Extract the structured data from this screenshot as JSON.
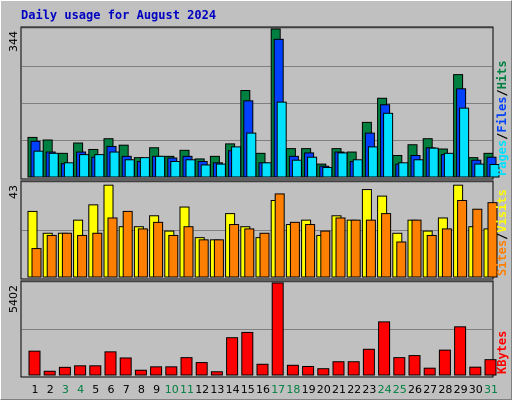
{
  "title": "Daily usage for August 2024",
  "colors": {
    "hits": "#008040",
    "files": "#0040ff",
    "pages": "#00e0ff",
    "visits": "#ffff00",
    "sites": "#ff8000",
    "kbytes": "#ff0000",
    "weekend": "#008040",
    "weekday": "#000000"
  },
  "side_labels": {
    "top": [
      "Pages",
      "Files",
      "Hits"
    ],
    "mid": [
      "Sites",
      "Visits"
    ],
    "bottom": [
      "KBytes"
    ]
  },
  "chart_data": [
    {
      "type": "bar",
      "panel": "hits-files-pages",
      "ytick_label": "344",
      "ylim": [
        0,
        344
      ],
      "categories": [
        "1",
        "2",
        "3",
        "4",
        "5",
        "6",
        "7",
        "8",
        "9",
        "10",
        "11",
        "12",
        "13",
        "14",
        "15",
        "16",
        "17",
        "18",
        "19",
        "20",
        "21",
        "22",
        "23",
        "24",
        "25",
        "26",
        "27",
        "28",
        "29",
        "30",
        "31"
      ],
      "weekend_days": [
        "3",
        "4",
        "10",
        "11",
        "17",
        "18",
        "24",
        "25",
        "31"
      ],
      "series": [
        {
          "name": "Hits",
          "values": [
            92,
            86,
            55,
            79,
            64,
            89,
            74,
            45,
            68,
            48,
            62,
            42,
            48,
            77,
            201,
            55,
            344,
            66,
            66,
            30,
            66,
            58,
            127,
            183,
            50,
            75,
            89,
            65,
            238,
            45,
            55
          ]
        },
        {
          "name": "Files",
          "values": [
            83,
            58,
            31,
            58,
            46,
            71,
            48,
            36,
            48,
            44,
            48,
            36,
            33,
            61,
            177,
            33,
            320,
            48,
            56,
            25,
            58,
            36,
            102,
            168,
            30,
            50,
            68,
            52,
            205,
            39,
            46
          ]
        },
        {
          "name": "Pages",
          "values": [
            60,
            55,
            33,
            52,
            52,
            58,
            40,
            45,
            48,
            36,
            40,
            28,
            30,
            70,
            102,
            33,
            174,
            39,
            46,
            22,
            56,
            40,
            70,
            148,
            33,
            40,
            67,
            55,
            160,
            30,
            29
          ]
        }
      ]
    },
    {
      "type": "bar",
      "panel": "visits-sites",
      "ytick_label": "43",
      "ylim": [
        0,
        43
      ],
      "categories": [
        "1",
        "2",
        "3",
        "4",
        "5",
        "6",
        "7",
        "8",
        "9",
        "10",
        "11",
        "12",
        "13",
        "14",
        "15",
        "16",
        "17",
        "18",
        "19",
        "20",
        "21",
        "22",
        "23",
        "24",
        "25",
        "26",
        "27",
        "28",
        "29",
        "30",
        "31"
      ],
      "series": [
        {
          "name": "Visits",
          "values": [
            30,
            20,
            20,
            26,
            33,
            42,
            23,
            23,
            28,
            21,
            32,
            18,
            17,
            29,
            23,
            18,
            35,
            24,
            26,
            19,
            28,
            26,
            40,
            37,
            20,
            26,
            21,
            27,
            42,
            23,
            22
          ]
        },
        {
          "name": "Sites",
          "values": [
            13,
            19,
            20,
            19,
            20,
            27,
            30,
            22,
            25,
            19,
            23,
            17,
            17,
            24,
            22,
            20,
            38,
            25,
            24,
            21,
            27,
            26,
            26,
            29,
            16,
            26,
            19,
            22,
            35,
            31,
            34
          ]
        }
      ]
    },
    {
      "type": "bar",
      "panel": "kbytes",
      "ytick_label": "5402",
      "ylim": [
        0,
        5402
      ],
      "categories": [
        "1",
        "2",
        "3",
        "4",
        "5",
        "6",
        "7",
        "8",
        "9",
        "10",
        "11",
        "12",
        "13",
        "14",
        "15",
        "16",
        "17",
        "18",
        "19",
        "20",
        "21",
        "22",
        "23",
        "24",
        "25",
        "26",
        "27",
        "28",
        "29",
        "30",
        "31"
      ],
      "series": [
        {
          "name": "KBytes",
          "values": [
            1400,
            220,
            450,
            540,
            540,
            1360,
            1000,
            280,
            480,
            480,
            1020,
            730,
            190,
            2190,
            2500,
            630,
            5402,
            570,
            500,
            370,
            780,
            780,
            1510,
            3120,
            1020,
            1140,
            400,
            1460,
            2830,
            460,
            900
          ]
        }
      ]
    }
  ]
}
